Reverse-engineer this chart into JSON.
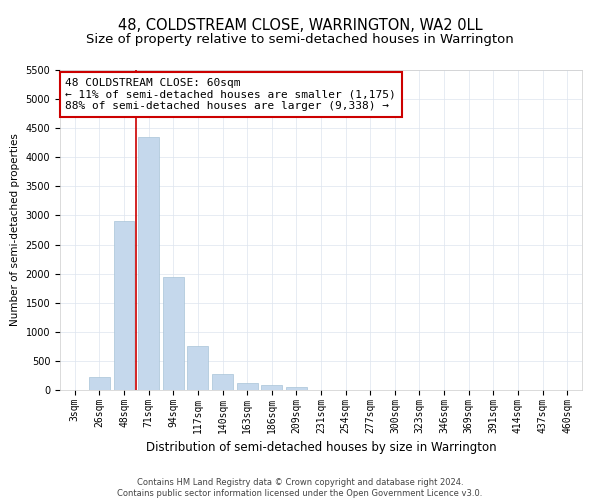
{
  "title": "48, COLDSTREAM CLOSE, WARRINGTON, WA2 0LL",
  "subtitle": "Size of property relative to semi-detached houses in Warrington",
  "xlabel": "Distribution of semi-detached houses by size in Warrington",
  "ylabel": "Number of semi-detached properties",
  "categories": [
    "3sqm",
    "26sqm",
    "48sqm",
    "71sqm",
    "94sqm",
    "117sqm",
    "140sqm",
    "163sqm",
    "186sqm",
    "209sqm",
    "231sqm",
    "254sqm",
    "277sqm",
    "300sqm",
    "323sqm",
    "346sqm",
    "369sqm",
    "391sqm",
    "414sqm",
    "437sqm",
    "460sqm"
  ],
  "values": [
    0,
    220,
    2900,
    4350,
    1950,
    750,
    280,
    120,
    90,
    60,
    0,
    0,
    0,
    0,
    0,
    0,
    0,
    0,
    0,
    0,
    0
  ],
  "bar_color": "#c5d8ec",
  "bar_edge_color": "#a8c4d8",
  "annotation_line1": "48 COLDSTREAM CLOSE: 60sqm",
  "annotation_line2": "← 11% of semi-detached houses are smaller (1,175)",
  "annotation_line3": "88% of semi-detached houses are larger (9,338) →",
  "annotation_box_color": "#ffffff",
  "annotation_box_edge": "#cc0000",
  "vline_color": "#cc0000",
  "vline_x": 2.5,
  "ylim": [
    0,
    5500
  ],
  "yticks": [
    0,
    500,
    1000,
    1500,
    2000,
    2500,
    3000,
    3500,
    4000,
    4500,
    5000,
    5500
  ],
  "footer": "Contains HM Land Registry data © Crown copyright and database right 2024.\nContains public sector information licensed under the Open Government Licence v3.0.",
  "title_fontsize": 10.5,
  "subtitle_fontsize": 9.5,
  "xlabel_fontsize": 8.5,
  "ylabel_fontsize": 7.5,
  "tick_fontsize": 7,
  "annotation_fontsize": 8,
  "footer_fontsize": 6,
  "bg_color": "#ffffff",
  "grid_color": "#dde4ef"
}
